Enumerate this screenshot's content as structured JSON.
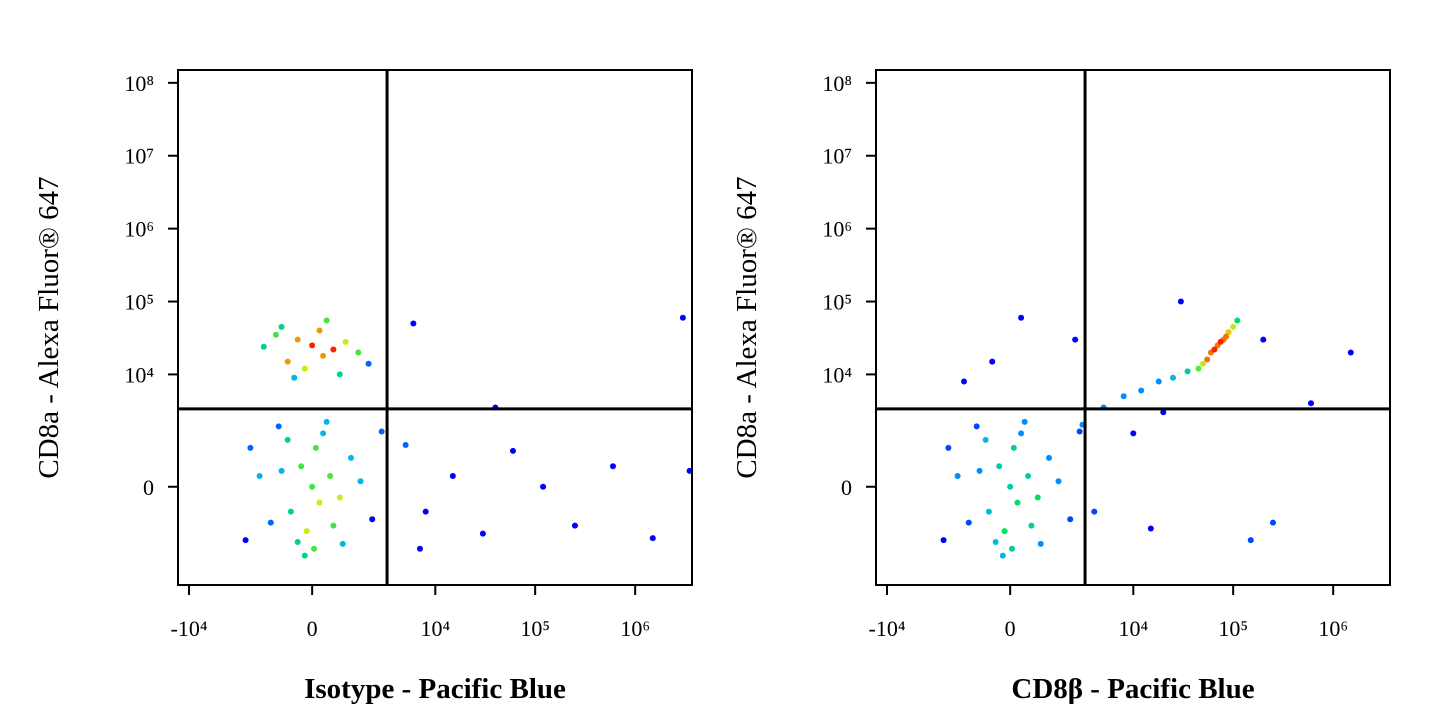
{
  "chart_data": [
    {
      "type": "scatter",
      "title": null,
      "x_label": "Isotype - Pacific Blue",
      "y_label": "CD8a - Alexa Fluor® 647",
      "xscale": "biexponential",
      "yscale": "biexponential",
      "xlim": [
        -12900,
        3700000
      ],
      "ylim": [
        -6400,
        150000000
      ],
      "xticks": [
        {
          "value": -10000,
          "label": "-10⁴"
        },
        0,
        {
          "value": 10000,
          "label": "10⁴"
        },
        {
          "value": 100000,
          "label": "10⁵"
        },
        {
          "value": 1000000,
          "label": "10⁶"
        }
      ],
      "yticks": [
        0,
        {
          "value": 10000,
          "label": "10⁴"
        },
        {
          "value": 100000,
          "label": "10⁵"
        },
        {
          "value": 1000000,
          "label": "10⁶"
        },
        {
          "value": 10000000,
          "label": "10⁷"
        },
        {
          "value": 100000000,
          "label": "10⁸"
        }
      ],
      "quadrant_x": 3200,
      "quadrant_y": 3350,
      "colormap": [
        "#0000ff",
        "#00b0ff",
        "#00e060",
        "#e8f000",
        "#ff2000"
      ],
      "x": [
        0,
        200,
        -300,
        500,
        -600,
        100,
        -150,
        800,
        -900,
        300,
        -400,
        1200,
        -1300,
        600,
        -700,
        50,
        1600,
        -1800,
        400,
        -200,
        2200,
        -2300,
        900,
        -1000,
        2800,
        -2600,
        0,
        300,
        -400,
        600,
        -700,
        200,
        -200,
        1000,
        -1100,
        800,
        -900,
        1500,
        -1600,
        400,
        -500,
        2000,
        5000,
        8000,
        15000,
        30000,
        60000,
        120000,
        250000,
        600000,
        1500000,
        3500000,
        6000,
        40000,
        3000000,
        7000
      ],
      "values": [
        0,
        -300,
        400,
        200,
        -500,
        900,
        -1100,
        -200,
        300,
        1500,
        -1600,
        600,
        -800,
        -900,
        1200,
        -2000,
        100,
        200,
        2200,
        -2500,
        -700,
        900,
        -1700,
        1900,
        1600,
        -1500,
        25000,
        18000,
        30000,
        22000,
        15000,
        40000,
        12000,
        28000,
        35000,
        10000,
        45000,
        20000,
        24000,
        55000,
        9000,
        14000,
        1000,
        -500,
        200,
        -1200,
        800,
        0,
        -900,
        400,
        -1400,
        300,
        50000,
        3500,
        60000,
        -2000
      ]
    },
    {
      "type": "scatter",
      "title": null,
      "x_label": "CD8β - Pacific Blue",
      "y_label": "CD8a - Alexa Fluor® 647",
      "xscale": "biexponential",
      "yscale": "biexponential",
      "xlim": [
        -12900,
        3700000
      ],
      "ylim": [
        -6400,
        150000000
      ],
      "xticks": [
        {
          "value": -10000,
          "label": "-10⁴"
        },
        0,
        {
          "value": 10000,
          "label": "10⁴"
        },
        {
          "value": 100000,
          "label": "10⁵"
        },
        {
          "value": 1000000,
          "label": "10⁶"
        }
      ],
      "yticks": [
        0,
        {
          "value": 10000,
          "label": "10⁴"
        },
        {
          "value": 100000,
          "label": "10⁵"
        },
        {
          "value": 1000000,
          "label": "10⁶"
        },
        {
          "value": 10000000,
          "label": "10⁷"
        },
        {
          "value": 100000000,
          "label": "10⁸"
        }
      ],
      "quadrant_x": 3200,
      "quadrant_y": 3350,
      "colormap": [
        "#0000ff",
        "#00b0ff",
        "#00e060",
        "#e8f000",
        "#ff2000"
      ],
      "x": [
        0,
        200,
        -300,
        500,
        -600,
        100,
        -150,
        800,
        -900,
        300,
        -400,
        1200,
        -1300,
        600,
        -700,
        50,
        1600,
        -1800,
        400,
        -200,
        2200,
        -2300,
        900,
        -1000,
        2800,
        -2600,
        70000,
        60000,
        80000,
        55000,
        90000,
        65000,
        75000,
        50000,
        100000,
        85000,
        45000,
        110000,
        3000,
        5000,
        8000,
        12000,
        18000,
        25000,
        35000,
        10000,
        20000,
        4000,
        15000,
        150000,
        250000,
        600000,
        2500,
        -500,
        300,
        30000,
        200000,
        1500000,
        -1500
      ],
      "values": [
        0,
        -300,
        400,
        200,
        -500,
        900,
        -1100,
        -200,
        300,
        1500,
        -1600,
        600,
        -800,
        -900,
        1200,
        -2000,
        100,
        200,
        2200,
        -2500,
        -700,
        900,
        -1700,
        1900,
        1600,
        -1500,
        25000,
        20000,
        30000,
        16000,
        38000,
        22000,
        28000,
        14000,
        45000,
        33000,
        12000,
        55000,
        2000,
        3500,
        5000,
        6000,
        8000,
        9000,
        11000,
        1500,
        3000,
        -500,
        -1000,
        -1500,
        -800,
        4000,
        30000,
        15000,
        60000,
        100000,
        30000,
        20000,
        8000
      ]
    }
  ]
}
